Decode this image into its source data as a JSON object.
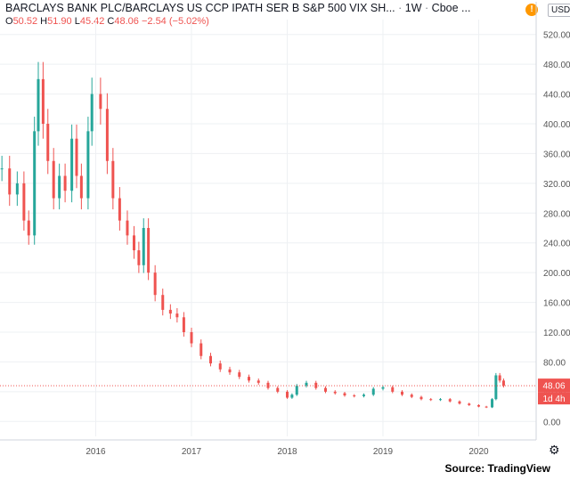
{
  "header": {
    "title": "BARCLAYS BANK PLC/BARCLAYS US CCP IPATH SER B S&P 500 VIX SH...",
    "interval": "1W",
    "exchange": "Cboe",
    "more": "...",
    "ohlc": {
      "o_label": "O",
      "o": "50.52",
      "h_label": "H",
      "h": "51.90",
      "l_label": "L",
      "l": "45.42",
      "c_label": "C",
      "c": "48.06",
      "change": "−2.54 (−5.02%)"
    },
    "currency": "USD",
    "warning_icon": "warning-icon"
  },
  "price_tag": {
    "last": "48.06",
    "countdown": "1d 4h"
  },
  "source": "Source: TradingView",
  "colors": {
    "up": "#26a69a",
    "down": "#ef5350",
    "grid": "#eef0f3",
    "axis": "#555",
    "price_line": "#ef5350"
  },
  "chart_data": {
    "type": "candlestick",
    "ylim": [
      -20,
      540
    ],
    "yticks": [
      "520.00",
      "480.00",
      "440.00",
      "400.00",
      "360.00",
      "320.00",
      "280.00",
      "240.00",
      "200.00",
      "160.00",
      "120.00",
      "80.00",
      "40.00",
      "0.00"
    ],
    "xticks": [
      "2016",
      "2017",
      "2018",
      "2019",
      "2020"
    ],
    "x_range": [
      2015.0,
      2020.6
    ],
    "series": [
      {
        "x": 2015.02,
        "close": 340
      },
      {
        "x": 2015.1,
        "close": 305
      },
      {
        "x": 2015.18,
        "close": 320
      },
      {
        "x": 2015.25,
        "close": 270
      },
      {
        "x": 2015.3,
        "close": 250
      },
      {
        "x": 2015.36,
        "close": 390
      },
      {
        "x": 2015.4,
        "close": 460
      },
      {
        "x": 2015.45,
        "close": 400
      },
      {
        "x": 2015.5,
        "close": 350
      },
      {
        "x": 2015.56,
        "close": 300
      },
      {
        "x": 2015.62,
        "close": 330
      },
      {
        "x": 2015.68,
        "close": 310
      },
      {
        "x": 2015.75,
        "close": 380
      },
      {
        "x": 2015.8,
        "close": 330
      },
      {
        "x": 2015.85,
        "close": 300
      },
      {
        "x": 2015.92,
        "close": 390
      },
      {
        "x": 2015.96,
        "close": 440
      },
      {
        "x": 2016.05,
        "close": 420
      },
      {
        "x": 2016.12,
        "close": 350
      },
      {
        "x": 2016.18,
        "close": 300
      },
      {
        "x": 2016.25,
        "close": 270
      },
      {
        "x": 2016.33,
        "close": 250
      },
      {
        "x": 2016.4,
        "close": 230
      },
      {
        "x": 2016.45,
        "close": 210
      },
      {
        "x": 2016.5,
        "close": 260
      },
      {
        "x": 2016.55,
        "close": 200
      },
      {
        "x": 2016.62,
        "close": 170
      },
      {
        "x": 2016.7,
        "close": 150
      },
      {
        "x": 2016.78,
        "close": 145
      },
      {
        "x": 2016.85,
        "close": 140
      },
      {
        "x": 2016.92,
        "close": 120
      },
      {
        "x": 2017.0,
        "close": 105
      },
      {
        "x": 2017.1,
        "close": 88
      },
      {
        "x": 2017.2,
        "close": 78
      },
      {
        "x": 2017.3,
        "close": 70
      },
      {
        "x": 2017.4,
        "close": 66
      },
      {
        "x": 2017.5,
        "close": 60
      },
      {
        "x": 2017.6,
        "close": 55
      },
      {
        "x": 2017.7,
        "close": 52
      },
      {
        "x": 2017.8,
        "close": 45
      },
      {
        "x": 2017.9,
        "close": 40
      },
      {
        "x": 2018.0,
        "close": 32
      },
      {
        "x": 2018.05,
        "close": 36
      },
      {
        "x": 2018.1,
        "close": 48
      },
      {
        "x": 2018.2,
        "close": 52
      },
      {
        "x": 2018.3,
        "close": 45
      },
      {
        "x": 2018.4,
        "close": 40
      },
      {
        "x": 2018.5,
        "close": 38
      },
      {
        "x": 2018.6,
        "close": 35
      },
      {
        "x": 2018.7,
        "close": 34
      },
      {
        "x": 2018.8,
        "close": 36
      },
      {
        "x": 2018.9,
        "close": 44
      },
      {
        "x": 2019.0,
        "close": 46
      },
      {
        "x": 2019.1,
        "close": 40
      },
      {
        "x": 2019.2,
        "close": 36
      },
      {
        "x": 2019.3,
        "close": 33
      },
      {
        "x": 2019.4,
        "close": 30
      },
      {
        "x": 2019.5,
        "close": 29
      },
      {
        "x": 2019.6,
        "close": 30
      },
      {
        "x": 2019.7,
        "close": 27
      },
      {
        "x": 2019.8,
        "close": 24
      },
      {
        "x": 2019.9,
        "close": 22
      },
      {
        "x": 2020.0,
        "close": 20
      },
      {
        "x": 2020.08,
        "close": 19
      },
      {
        "x": 2020.14,
        "close": 30
      },
      {
        "x": 2020.18,
        "close": 62
      },
      {
        "x": 2020.22,
        "close": 55
      },
      {
        "x": 2020.26,
        "close": 48.06
      }
    ],
    "annotations": [
      "48.06",
      "1d 4h"
    ]
  }
}
